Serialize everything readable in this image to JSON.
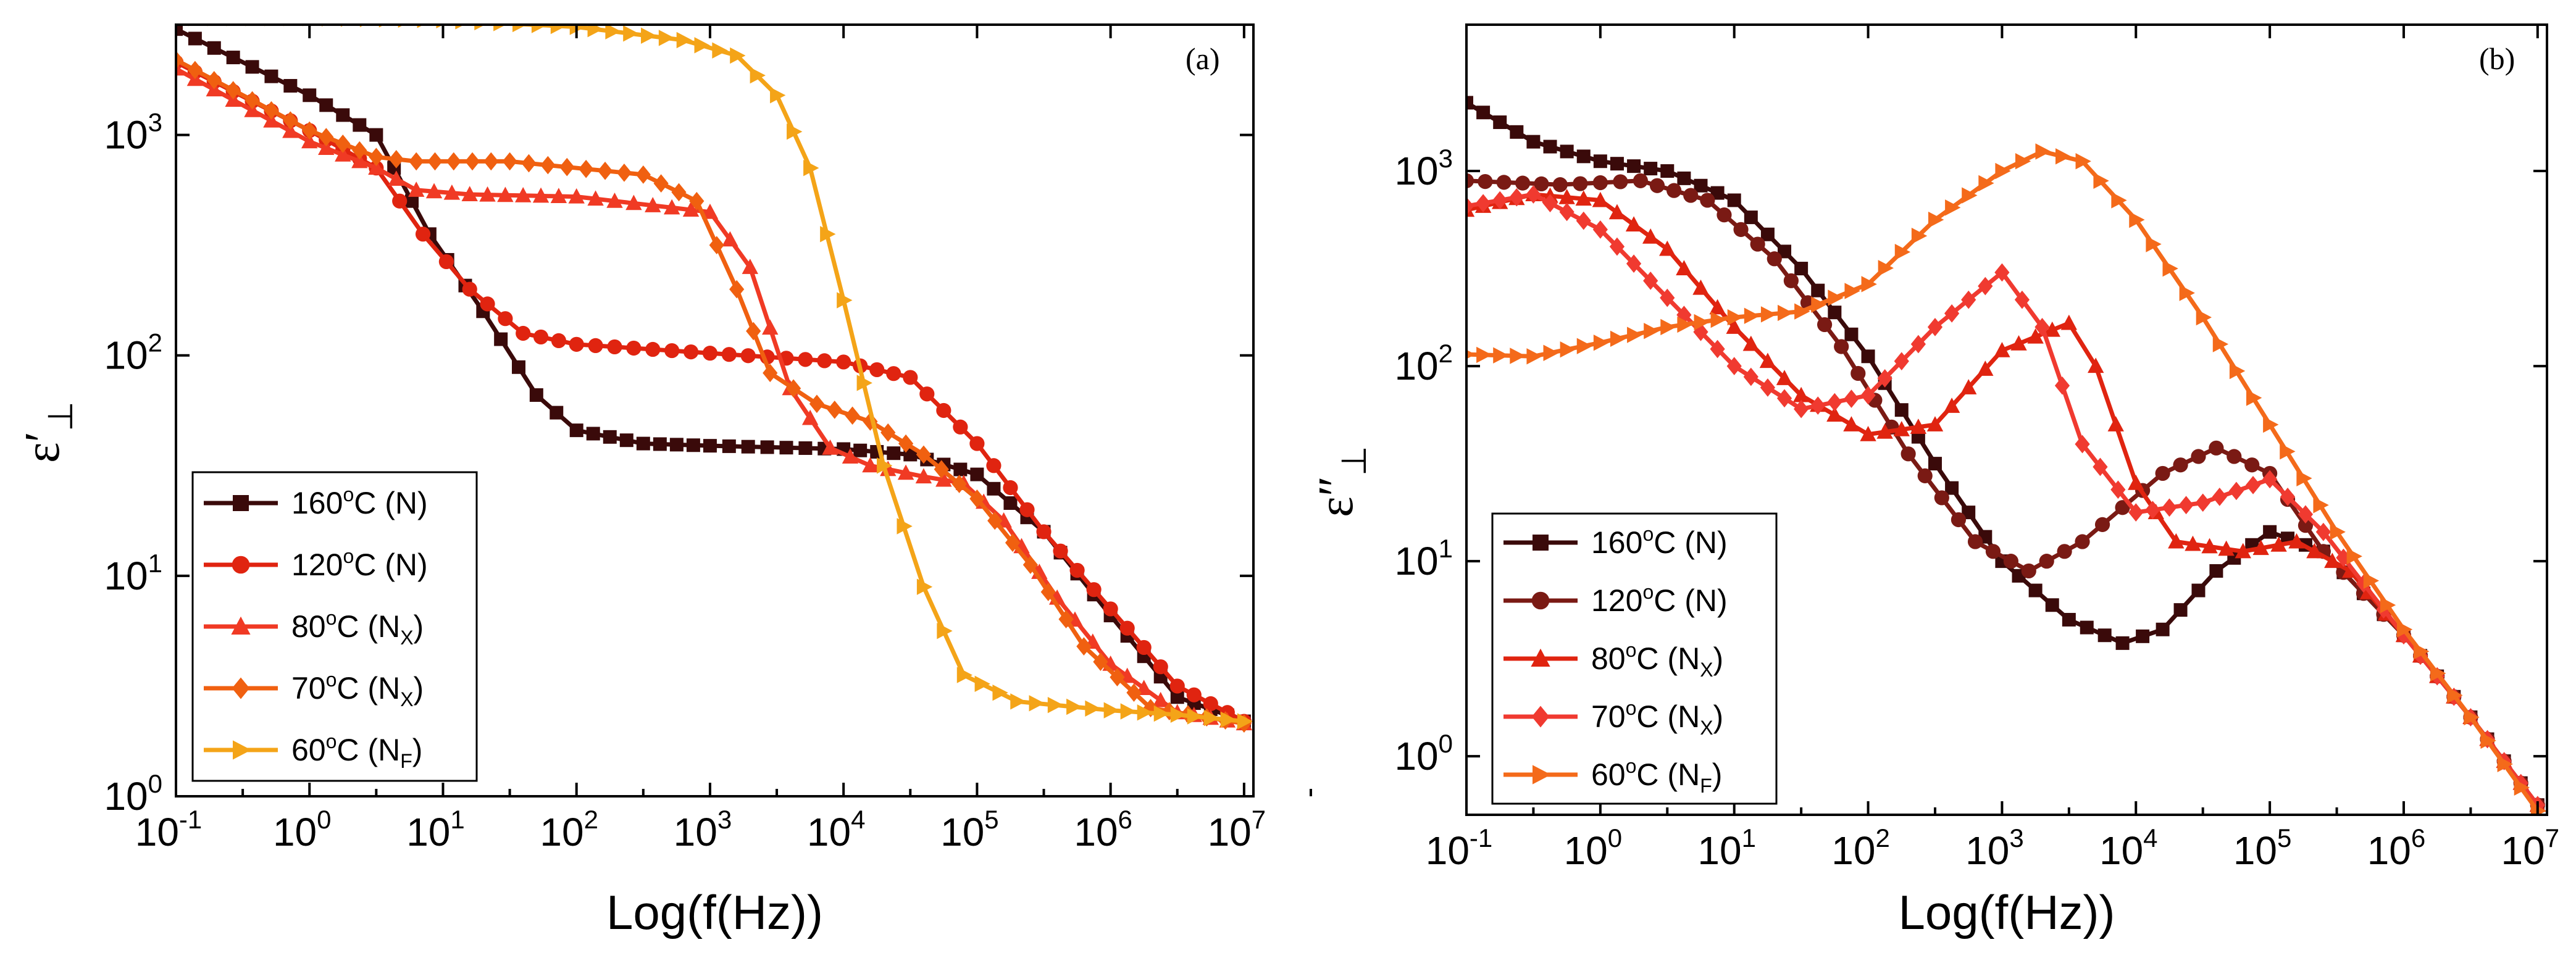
{
  "chart_data": [
    {
      "type": "line",
      "panel_label": "(a)",
      "xlabel": "Log(f(Hz))",
      "ylabel_main": "ε′",
      "ylabel_sub": "⊥",
      "xscale": "log",
      "yscale": "log",
      "xlim_log10": [
        -1,
        7.07
      ],
      "ylim_log10": [
        0,
        3.5
      ],
      "x_ticks": [
        {
          "base": "10",
          "exp": "-1"
        },
        {
          "base": "10",
          "exp": "0"
        },
        {
          "base": "10",
          "exp": "1"
        },
        {
          "base": "10",
          "exp": "2"
        },
        {
          "base": "10",
          "exp": "3"
        },
        {
          "base": "10",
          "exp": "4"
        },
        {
          "base": "10",
          "exp": "5"
        },
        {
          "base": "10",
          "exp": "6"
        },
        {
          "base": "10",
          "exp": "7"
        }
      ],
      "y_ticks": [
        {
          "base": "10",
          "exp": "0"
        },
        {
          "base": "10",
          "exp": "1"
        },
        {
          "base": "10",
          "exp": "2"
        },
        {
          "base": "10",
          "exp": "3"
        }
      ],
      "legend_position": "bottom-left",
      "series": [
        {
          "name": "160°C (N)",
          "temp": "160",
          "deg": "o",
          "unit": "C (N",
          "sub": "",
          "close": ")",
          "color": "#3a0a0a",
          "marker": "square",
          "points": [
            [
              -1,
              3.48
            ],
            [
              0,
              3.18
            ],
            [
              0.5,
              3.0
            ],
            [
              0.9,
              2.55
            ],
            [
              1.3,
              2.2
            ],
            [
              1.7,
              1.82
            ],
            [
              2.0,
              1.66
            ],
            [
              2.5,
              1.6
            ],
            [
              3,
              1.59
            ],
            [
              4,
              1.575
            ],
            [
              4.5,
              1.55
            ],
            [
              5.0,
              1.46
            ],
            [
              5.5,
              1.2
            ],
            [
              6.0,
              0.82
            ],
            [
              6.5,
              0.45
            ],
            [
              7.0,
              0.34
            ]
          ]
        },
        {
          "name": "120°C (N)",
          "temp": "120",
          "deg": "o",
          "unit": "C (N",
          "sub": "",
          "close": ")",
          "color": "#e02410",
          "marker": "circle",
          "points": [
            [
              -1,
              3.33
            ],
            [
              0,
              3.02
            ],
            [
              0.5,
              2.85
            ],
            [
              0.85,
              2.55
            ],
            [
              1.2,
              2.3
            ],
            [
              1.6,
              2.1
            ],
            [
              2.0,
              2.05
            ],
            [
              3,
              2.01
            ],
            [
              4,
              1.97
            ],
            [
              4.5,
              1.9
            ],
            [
              5.0,
              1.6
            ],
            [
              5.5,
              1.2
            ],
            [
              6.0,
              0.85
            ],
            [
              6.5,
              0.5
            ],
            [
              7.0,
              0.34
            ]
          ]
        },
        {
          "name": "80°C (NX)",
          "temp": "80",
          "deg": "o",
          "unit": "C (N",
          "sub": "X",
          "close": ")",
          "color": "#f03a24",
          "marker": "triangle",
          "points": [
            [
              -1,
              3.3
            ],
            [
              0,
              2.97
            ],
            [
              0.5,
              2.85
            ],
            [
              0.8,
              2.75
            ],
            [
              1.2,
              2.73
            ],
            [
              2.0,
              2.72
            ],
            [
              3.0,
              2.65
            ],
            [
              3.3,
              2.4
            ],
            [
              3.6,
              1.85
            ],
            [
              3.9,
              1.58
            ],
            [
              4.2,
              1.5
            ],
            [
              4.6,
              1.45
            ],
            [
              4.9,
              1.42
            ],
            [
              5.2,
              1.25
            ],
            [
              5.6,
              0.9
            ],
            [
              6.0,
              0.6
            ],
            [
              6.5,
              0.38
            ],
            [
              7.0,
              0.33
            ]
          ]
        },
        {
          "name": "70°C (NX)",
          "temp": "70",
          "deg": "o",
          "unit": "C (N",
          "sub": "X",
          "close": ")",
          "color": "#f06010",
          "marker": "diamond",
          "points": [
            [
              -1,
              3.34
            ],
            [
              0,
              3.02
            ],
            [
              0.5,
              2.9
            ],
            [
              0.8,
              2.88
            ],
            [
              1.5,
              2.88
            ],
            [
              2.5,
              2.82
            ],
            [
              2.9,
              2.7
            ],
            [
              3.2,
              2.3
            ],
            [
              3.45,
              1.92
            ],
            [
              3.8,
              1.78
            ],
            [
              4.2,
              1.7
            ],
            [
              4.6,
              1.55
            ],
            [
              5.0,
              1.35
            ],
            [
              5.4,
              1.05
            ],
            [
              5.8,
              0.68
            ],
            [
              6.3,
              0.4
            ],
            [
              7.0,
              0.33
            ]
          ]
        },
        {
          "name": "60°C (NF)",
          "temp": "60",
          "deg": "o",
          "unit": "C (N",
          "sub": "F",
          "close": ")",
          "color": "#f4a418",
          "marker": "tri-right",
          "points": [
            [
              -1,
              3.53
            ],
            [
              0,
              3.53
            ],
            [
              1,
              3.52
            ],
            [
              2,
              3.49
            ],
            [
              2.8,
              3.43
            ],
            [
              3.2,
              3.36
            ],
            [
              3.5,
              3.18
            ],
            [
              3.75,
              2.85
            ],
            [
              4.0,
              2.25
            ],
            [
              4.3,
              1.5
            ],
            [
              4.6,
              0.95
            ],
            [
              4.9,
              0.55
            ],
            [
              5.3,
              0.43
            ],
            [
              6.0,
              0.39
            ],
            [
              6.5,
              0.37
            ],
            [
              7.0,
              0.34
            ]
          ]
        }
      ]
    },
    {
      "type": "line",
      "panel_label": "(b)",
      "xlabel": "Log(f(Hz))",
      "ylabel_main": "ε″",
      "ylabel_sub": "⊥",
      "xscale": "log",
      "yscale": "log",
      "xlim_log10": [
        -1,
        7.07
      ],
      "ylim_log10": [
        -0.3,
        3.75
      ],
      "x_ticks": [
        {
          "base": "10",
          "exp": "-1"
        },
        {
          "base": "10",
          "exp": "0"
        },
        {
          "base": "10",
          "exp": "1"
        },
        {
          "base": "10",
          "exp": "2"
        },
        {
          "base": "10",
          "exp": "3"
        },
        {
          "base": "10",
          "exp": "4"
        },
        {
          "base": "10",
          "exp": "5"
        },
        {
          "base": "10",
          "exp": "6"
        },
        {
          "base": "10",
          "exp": "7"
        }
      ],
      "y_ticks": [
        {
          "base": "10",
          "exp": "0"
        },
        {
          "base": "10",
          "exp": "1"
        },
        {
          "base": "10",
          "exp": "2"
        },
        {
          "base": "10",
          "exp": "3"
        }
      ],
      "legend_position": "bottom-left",
      "series": [
        {
          "name": "160°C (N)",
          "temp": "160",
          "deg": "o",
          "unit": "C (N",
          "sub": "",
          "close": ")",
          "color": "#3a0a0a",
          "marker": "square",
          "points": [
            [
              -1,
              3.35
            ],
            [
              -0.5,
              3.15
            ],
            [
              0,
              3.05
            ],
            [
              0.5,
              3.0
            ],
            [
              1.0,
              2.85
            ],
            [
              1.5,
              2.5
            ],
            [
              2.0,
              2.05
            ],
            [
              2.5,
              1.5
            ],
            [
              3.0,
              1.0
            ],
            [
              3.5,
              0.7
            ],
            [
              3.9,
              0.58
            ],
            [
              4.2,
              0.65
            ],
            [
              4.6,
              0.95
            ],
            [
              5.0,
              1.15
            ],
            [
              5.4,
              1.05
            ],
            [
              6.0,
              0.62
            ],
            [
              6.5,
              0.2
            ],
            [
              7.0,
              -0.25
            ]
          ]
        },
        {
          "name": "120°C (N)",
          "temp": "120",
          "deg": "o",
          "unit": "C (N",
          "sub": "",
          "close": ")",
          "color": "#7a1a14",
          "marker": "circle",
          "points": [
            [
              -1,
              2.95
            ],
            [
              -0.3,
              2.93
            ],
            [
              0.3,
              2.95
            ],
            [
              0.8,
              2.85
            ],
            [
              1.3,
              2.55
            ],
            [
              1.8,
              2.1
            ],
            [
              2.3,
              1.55
            ],
            [
              2.8,
              1.1
            ],
            [
              3.2,
              0.95
            ],
            [
              3.6,
              1.1
            ],
            [
              4.2,
              1.45
            ],
            [
              4.6,
              1.58
            ],
            [
              5.0,
              1.45
            ],
            [
              5.4,
              1.05
            ],
            [
              6.0,
              0.62
            ],
            [
              6.5,
              0.2
            ],
            [
              7.0,
              -0.25
            ]
          ]
        },
        {
          "name": "80°C (NX)",
          "temp": "80",
          "deg": "o",
          "unit": "C (N",
          "sub": "X",
          "close": ")",
          "color": "#e02410",
          "marker": "triangle",
          "points": [
            [
              -1,
              2.8
            ],
            [
              -0.5,
              2.88
            ],
            [
              0,
              2.85
            ],
            [
              0.5,
              2.6
            ],
            [
              1.0,
              2.2
            ],
            [
              1.5,
              1.85
            ],
            [
              2.0,
              1.65
            ],
            [
              2.5,
              1.7
            ],
            [
              3.0,
              2.08
            ],
            [
              3.5,
              2.22
            ],
            [
              3.7,
              2.0
            ],
            [
              4.0,
              1.4
            ],
            [
              4.3,
              1.1
            ],
            [
              4.8,
              1.05
            ],
            [
              5.2,
              1.1
            ],
            [
              5.6,
              0.95
            ],
            [
              6.0,
              0.62
            ],
            [
              6.5,
              0.2
            ],
            [
              7.0,
              -0.25
            ]
          ]
        },
        {
          "name": "70°C (NX)",
          "temp": "70",
          "deg": "o",
          "unit": "C (N",
          "sub": "X",
          "close": ")",
          "color": "#f03a30",
          "marker": "diamond",
          "points": [
            [
              -1,
              2.82
            ],
            [
              -0.5,
              2.88
            ],
            [
              0,
              2.7
            ],
            [
              0.5,
              2.35
            ],
            [
              1.0,
              2.0
            ],
            [
              1.5,
              1.78
            ],
            [
              2.0,
              1.85
            ],
            [
              2.5,
              2.2
            ],
            [
              3.0,
              2.48
            ],
            [
              3.3,
              2.2
            ],
            [
              3.6,
              1.6
            ],
            [
              4.0,
              1.25
            ],
            [
              4.5,
              1.3
            ],
            [
              5.0,
              1.42
            ],
            [
              5.4,
              1.15
            ],
            [
              6.0,
              0.62
            ],
            [
              6.5,
              0.2
            ],
            [
              7.0,
              -0.25
            ]
          ]
        },
        {
          "name": "60°C (NF)",
          "temp": "60",
          "deg": "o",
          "unit": "C (N",
          "sub": "F",
          "close": ")",
          "color": "#f46a1a",
          "marker": "tri-right",
          "points": [
            [
              -1,
              2.06
            ],
            [
              -0.5,
              2.05
            ],
            [
              0,
              2.12
            ],
            [
              0.5,
              2.2
            ],
            [
              1.0,
              2.25
            ],
            [
              1.5,
              2.28
            ],
            [
              2.0,
              2.42
            ],
            [
              2.5,
              2.75
            ],
            [
              3.0,
              3.0
            ],
            [
              3.3,
              3.1
            ],
            [
              3.6,
              3.05
            ],
            [
              4.0,
              2.75
            ],
            [
              4.5,
              2.25
            ],
            [
              5.0,
              1.7
            ],
            [
              5.5,
              1.15
            ],
            [
              6.0,
              0.65
            ],
            [
              6.5,
              0.2
            ],
            [
              7.0,
              -0.28
            ]
          ]
        }
      ]
    }
  ]
}
